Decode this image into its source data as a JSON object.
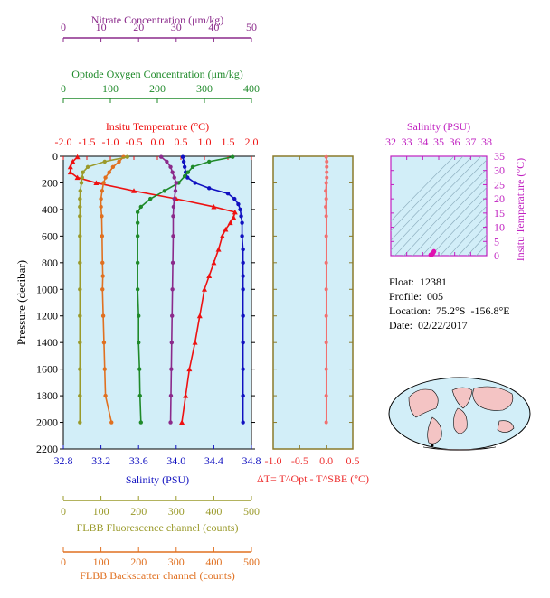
{
  "chart_data": [
    {
      "type": "line",
      "panel": "main-profile",
      "y_axis": {
        "label": "Pressure (decibar)",
        "reversed": true,
        "ylim": [
          0,
          2200
        ],
        "ticks": [
          0,
          200,
          400,
          600,
          800,
          1000,
          1200,
          1400,
          1600,
          1800,
          2000,
          2200
        ]
      },
      "x_axes": [
        {
          "id": "nitrate",
          "position": "top-1",
          "label": "Nitrate Concentration (μm/kg)",
          "color": "#8b2a8b",
          "xlim": [
            0,
            50
          ],
          "ticks": [
            0,
            10,
            20,
            30,
            40,
            50
          ]
        },
        {
          "id": "oxygen",
          "position": "top-2",
          "label": "Optode Oxygen Concentration (μm/kg)",
          "color": "#1f8a2a",
          "xlim": [
            0,
            400
          ],
          "ticks": [
            0,
            100,
            200,
            300,
            400
          ]
        },
        {
          "id": "temperature",
          "position": "top-3",
          "label": "Insitu Temperature (°C)",
          "color": "#ee1111",
          "xlim": [
            -2.0,
            2.0
          ],
          "ticks": [
            "-2.0",
            "-1.5",
            "-1.0",
            "-0.5",
            "0.0",
            "0.5",
            "1.0",
            "1.5",
            "2.0"
          ]
        },
        {
          "id": "salinity",
          "position": "bottom-1",
          "label": "Salinity (PSU)",
          "color": "#1010c0",
          "xlim": [
            32.8,
            34.8
          ],
          "ticks": [
            "32.8",
            "33.2",
            "33.6",
            "34.0",
            "34.4",
            "34.8"
          ]
        },
        {
          "id": "fluorescence",
          "position": "bottom-2",
          "label": "FLBB Fluorescence channel (counts)",
          "color": "#9a9a2a",
          "xlim": [
            0,
            500
          ],
          "ticks": [
            0,
            100,
            200,
            300,
            400,
            500
          ]
        },
        {
          "id": "backscatter",
          "position": "bottom-3",
          "label": "FLBB Backscatter channel (counts)",
          "color": "#e07020",
          "xlim": [
            0,
            500
          ],
          "ticks": [
            0,
            100,
            200,
            300,
            400,
            500
          ]
        }
      ],
      "series": [
        {
          "axis": "salinity",
          "color": "#1010c0",
          "marker": "circle",
          "points": [
            [
              34.07,
              5
            ],
            [
              34.08,
              40
            ],
            [
              34.09,
              80
            ],
            [
              34.1,
              120
            ],
            [
              34.12,
              160
            ],
            [
              34.2,
              200
            ],
            [
              34.35,
              240
            ],
            [
              34.55,
              280
            ],
            [
              34.62,
              320
            ],
            [
              34.66,
              360
            ],
            [
              34.68,
              400
            ],
            [
              34.69,
              450
            ],
            [
              34.7,
              500
            ],
            [
              34.7,
              600
            ],
            [
              34.71,
              700
            ],
            [
              34.71,
              800
            ],
            [
              34.71,
              900
            ],
            [
              34.71,
              1000
            ],
            [
              34.71,
              1200
            ],
            [
              34.71,
              1400
            ],
            [
              34.71,
              1600
            ],
            [
              34.71,
              1800
            ],
            [
              34.71,
              2000
            ]
          ]
        },
        {
          "axis": "temperature",
          "color": "#ee1111",
          "marker": "triangle",
          "points": [
            [
              -1.7,
              5
            ],
            [
              -1.8,
              40
            ],
            [
              -1.85,
              80
            ],
            [
              -1.85,
              120
            ],
            [
              -1.7,
              160
            ],
            [
              -1.3,
              200
            ],
            [
              -0.5,
              260
            ],
            [
              0.4,
              320
            ],
            [
              1.2,
              380
            ],
            [
              1.65,
              420
            ],
            [
              1.62,
              460
            ],
            [
              1.55,
              500
            ],
            [
              1.45,
              550
            ],
            [
              1.38,
              600
            ],
            [
              1.3,
              700
            ],
            [
              1.2,
              800
            ],
            [
              1.1,
              900
            ],
            [
              1.0,
              1000
            ],
            [
              0.9,
              1200
            ],
            [
              0.8,
              1400
            ],
            [
              0.68,
              1600
            ],
            [
              0.6,
              1800
            ],
            [
              0.52,
              2000
            ]
          ]
        },
        {
          "axis": "oxygen",
          "color": "#1f8a2a",
          "marker": "circle",
          "points": [
            [
              360,
              5
            ],
            [
              310,
              40
            ],
            [
              275,
              80
            ],
            [
              265,
              120
            ],
            [
              258,
              150
            ],
            [
              245,
              200
            ],
            [
              215,
              260
            ],
            [
              185,
              320
            ],
            [
              165,
              380
            ],
            [
              158,
              420
            ],
            [
              158,
              500
            ],
            [
              158,
              600
            ],
            [
              158,
              800
            ],
            [
              158,
              1000
            ],
            [
              160,
              1200
            ],
            [
              160,
              1400
            ],
            [
              162,
              1600
            ],
            [
              163,
              1800
            ],
            [
              165,
              2000
            ]
          ]
        },
        {
          "axis": "nitrate",
          "color": "#8b2a8b",
          "marker": "circle",
          "points": [
            [
              26,
              5
            ],
            [
              27.5,
              40
            ],
            [
              28.5,
              80
            ],
            [
              29,
              120
            ],
            [
              29.5,
              160
            ],
            [
              30,
              200
            ],
            [
              29.8,
              260
            ],
            [
              29.5,
              320
            ],
            [
              29.3,
              380
            ],
            [
              29.2,
              450
            ],
            [
              29.2,
              600
            ],
            [
              29.1,
              800
            ],
            [
              29.0,
              1000
            ],
            [
              28.9,
              1200
            ],
            [
              28.8,
              1400
            ],
            [
              28.7,
              1600
            ],
            [
              28.6,
              1800
            ],
            [
              28.5,
              2000
            ]
          ]
        },
        {
          "axis": "backscatter",
          "color": "#e07020",
          "marker": "circle",
          "points": [
            [
              160,
              5
            ],
            [
              148,
              40
            ],
            [
              132,
              80
            ],
            [
              122,
              120
            ],
            [
              112,
              160
            ],
            [
              107,
              200
            ],
            [
              103,
              260
            ],
            [
              100,
              320
            ],
            [
              100,
              380
            ],
            [
              102,
              450
            ],
            [
              103,
              600
            ],
            [
              104,
              800
            ],
            [
              105,
              900
            ],
            [
              104,
              1000
            ],
            [
              106,
              1200
            ],
            [
              108,
              1400
            ],
            [
              110,
              1600
            ],
            [
              112,
              1800
            ],
            [
              128,
              2000
            ]
          ]
        },
        {
          "axis": "fluorescence",
          "color": "#9a9a2a",
          "marker": "circle",
          "points": [
            [
              170,
              5
            ],
            [
              110,
              40
            ],
            [
              65,
              80
            ],
            [
              52,
              120
            ],
            [
              50,
              160
            ],
            [
              48,
              200
            ],
            [
              45,
              260
            ],
            [
              44,
              320
            ],
            [
              44,
              380
            ],
            [
              44,
              450
            ],
            [
              44,
              600
            ],
            [
              44,
              800
            ],
            [
              44,
              1000
            ],
            [
              44,
              1200
            ],
            [
              44,
              1400
            ],
            [
              44,
              1600
            ],
            [
              44,
              1800
            ],
            [
              44,
              2000
            ]
          ]
        }
      ]
    },
    {
      "type": "line",
      "panel": "delta-t",
      "xlabel": "ΔT= T^Opt - T^SBE (°C)",
      "xlim": [
        -1.0,
        0.5
      ],
      "xticks": [
        "-1.0",
        "-0.5",
        "0.0",
        "0.5"
      ],
      "ylim": [
        0,
        2200
      ],
      "series": [
        {
          "color": "#f07070",
          "points": [
            [
              0.0,
              5
            ],
            [
              0.01,
              40
            ],
            [
              0.01,
              80
            ],
            [
              0.01,
              120
            ],
            [
              0.01,
              160
            ],
            [
              0.0,
              200
            ],
            [
              -0.01,
              260
            ],
            [
              0.0,
              320
            ],
            [
              -0.01,
              380
            ],
            [
              0.0,
              450
            ],
            [
              0.0,
              600
            ],
            [
              0.0,
              800
            ],
            [
              0.0,
              1000
            ],
            [
              0.0,
              1200
            ],
            [
              0.0,
              1400
            ],
            [
              0.0,
              1600
            ],
            [
              0.0,
              1800
            ],
            [
              0.0,
              2000
            ]
          ]
        }
      ]
    },
    {
      "type": "scatter",
      "panel": "ts-diagram",
      "xlabel": "Salinity (PSU)",
      "ylabel": "Insitu Temperature (°C)",
      "xlim": [
        32,
        38
      ],
      "ylim": [
        0,
        35
      ],
      "xticks": [
        "32",
        "33",
        "34",
        "35",
        "36",
        "37",
        "38"
      ],
      "yticks": [
        "0",
        "5",
        "10",
        "15",
        "20",
        "25",
        "30",
        "35"
      ],
      "points": [
        [
          34.6,
          0.5
        ],
        [
          34.65,
          1.0
        ],
        [
          34.7,
          1.5
        ],
        [
          34.6,
          0.8
        ],
        [
          34.5,
          0.3
        ]
      ]
    }
  ],
  "float_info": {
    "float": "Float:  12381",
    "profile": "Profile:  005",
    "location": "Location:  75.2°S  -156.8°E",
    "date": "Date:  02/22/2017"
  }
}
